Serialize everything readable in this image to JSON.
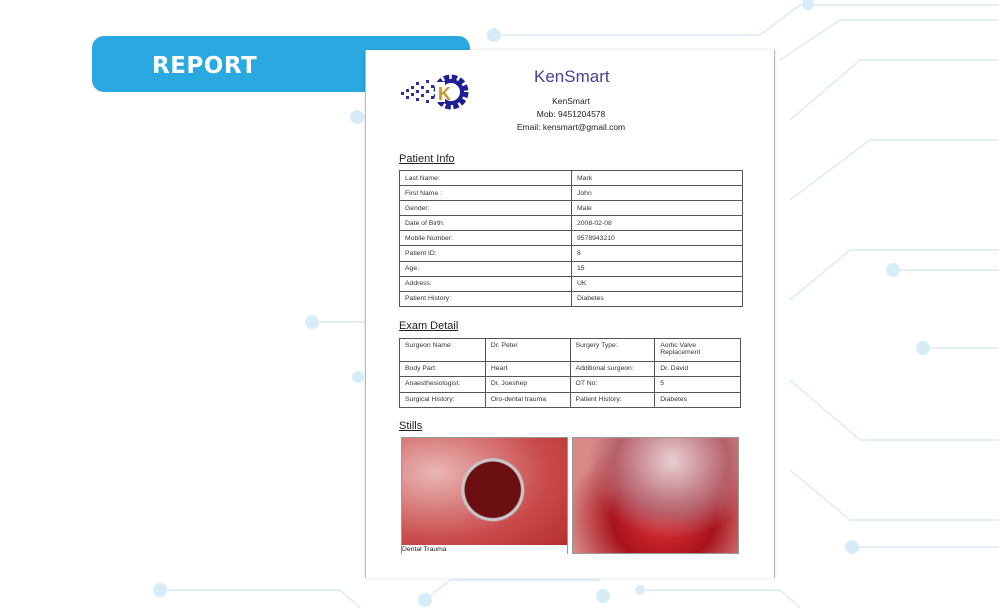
{
  "banner": {
    "title": "REPORT"
  },
  "colors": {
    "banner": "#29a9e0",
    "brand": "#4a3f96",
    "circuit": "#d6edf8"
  },
  "header": {
    "brand": "KenSmart",
    "name": "KenSmart",
    "mob": "Mob: 9451204578",
    "email": "Email: kensmart@gmail.com",
    "logo_icon": "gear-k-logo",
    "logo_letter": "K"
  },
  "patient_info": {
    "title": "Patient Info",
    "rows": [
      [
        "Last Name:",
        "Mark"
      ],
      [
        "First Name :",
        "John"
      ],
      [
        "Gender:",
        "Male"
      ],
      [
        "Date of Birth:",
        "2008-02-08"
      ],
      [
        "Mobile Number:",
        "9578943210"
      ],
      [
        "Patient ID:",
        "8"
      ],
      [
        "Age:",
        "15"
      ],
      [
        "Address:",
        "UK"
      ],
      [
        "Patient History:",
        "Diabetes"
      ]
    ]
  },
  "exam_detail": {
    "title": "Exam Detail",
    "rows": [
      [
        "Surgeon Name:",
        "Dr. Peter",
        "Surgery Type:",
        "Aortic Valve Replacement"
      ],
      [
        "Body Part:",
        "Heart",
        "Additional surgeon:",
        "Dr. David"
      ],
      [
        "Anaesthesiologist:",
        "Dr. Joeshep",
        "OT No:",
        "5"
      ],
      [
        "Surgical History:",
        "Oro-dental trauma",
        "Patient History:",
        "Diabetes"
      ]
    ]
  },
  "stills": {
    "title": "Stills",
    "captions": [
      "Dental Trauma",
      ""
    ]
  }
}
